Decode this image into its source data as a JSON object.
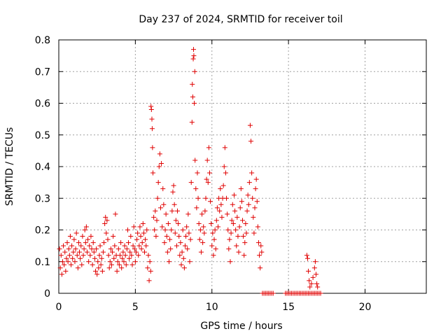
{
  "chart_data": {
    "type": "scatter",
    "title": "Day 237 of 2024, SRMTID for receiver toil",
    "xlabel": "GPS time / hours",
    "ylabel": "SRMTID / TECUs",
    "xlim": [
      0,
      24
    ],
    "ylim": [
      0,
      0.8
    ],
    "xticks": [
      0,
      5,
      10,
      15,
      20
    ],
    "yticks": [
      0,
      0.1,
      0.2,
      0.3,
      0.4,
      0.5,
      0.6,
      0.7,
      0.8
    ],
    "grid": true,
    "marker": "+",
    "series": [
      {
        "name": "SRMTID",
        "color": "#e00000",
        "points": [
          [
            0.05,
            0.14
          ],
          [
            0.1,
            0.08
          ],
          [
            0.15,
            0.12
          ],
          [
            0.2,
            0.06
          ],
          [
            0.25,
            0.1
          ],
          [
            0.3,
            0.15
          ],
          [
            0.35,
            0.09
          ],
          [
            0.4,
            0.13
          ],
          [
            0.45,
            0.07
          ],
          [
            0.5,
            0.11
          ],
          [
            0.55,
            0.16
          ],
          [
            0.6,
            0.1
          ],
          [
            0.65,
            0.14
          ],
          [
            0.7,
            0.12
          ],
          [
            0.75,
            0.18
          ],
          [
            0.8,
            0.09
          ],
          [
            0.85,
            0.15
          ],
          [
            0.9,
            0.11
          ],
          [
            0.95,
            0.13
          ],
          [
            1.0,
            0.17
          ],
          [
            1.05,
            0.1
          ],
          [
            1.1,
            0.14
          ],
          [
            1.15,
            0.19
          ],
          [
            1.2,
            0.12
          ],
          [
            1.25,
            0.08
          ],
          [
            1.3,
            0.16
          ],
          [
            1.35,
            0.13
          ],
          [
            1.4,
            0.11
          ],
          [
            1.45,
            0.15
          ],
          [
            1.5,
            0.09
          ],
          [
            1.55,
            0.18
          ],
          [
            1.6,
            0.12
          ],
          [
            1.65,
            0.14
          ],
          [
            1.7,
            0.2
          ],
          [
            1.75,
            0.16
          ],
          [
            1.8,
            0.21
          ],
          [
            1.85,
            0.13
          ],
          [
            1.9,
            0.17
          ],
          [
            1.95,
            0.1
          ],
          [
            2.0,
            0.15
          ],
          [
            2.05,
            0.12
          ],
          [
            2.1,
            0.18
          ],
          [
            2.15,
            0.14
          ],
          [
            2.2,
            0.09
          ],
          [
            2.25,
            0.16
          ],
          [
            2.3,
            0.13
          ],
          [
            2.35,
            0.11
          ],
          [
            2.4,
            0.07
          ],
          [
            2.45,
            0.14
          ],
          [
            2.5,
            0.06
          ],
          [
            2.55,
            0.1
          ],
          [
            2.6,
            0.08
          ],
          [
            2.65,
            0.12
          ],
          [
            2.7,
            0.15
          ],
          [
            2.75,
            0.09
          ],
          [
            2.8,
            0.11
          ],
          [
            2.85,
            0.07
          ],
          [
            2.9,
            0.13
          ],
          [
            2.95,
            0.16
          ],
          [
            3.0,
            0.22
          ],
          [
            3.05,
            0.24
          ],
          [
            3.1,
            0.19
          ],
          [
            3.15,
            0.23
          ],
          [
            3.2,
            0.17
          ],
          [
            3.25,
            0.12
          ],
          [
            3.3,
            0.08
          ],
          [
            3.35,
            0.1
          ],
          [
            3.4,
            0.14
          ],
          [
            3.45,
            0.09
          ],
          [
            3.5,
            0.13
          ],
          [
            3.55,
            0.18
          ],
          [
            3.6,
            0.11
          ],
          [
            3.65,
            0.15
          ],
          [
            3.7,
            0.25
          ],
          [
            3.75,
            0.12
          ],
          [
            3.8,
            0.07
          ],
          [
            3.85,
            0.1
          ],
          [
            3.9,
            0.14
          ],
          [
            3.95,
            0.09
          ],
          [
            4.0,
            0.12
          ],
          [
            4.05,
            0.16
          ],
          [
            4.1,
            0.08
          ],
          [
            4.15,
            0.11
          ],
          [
            4.2,
            0.13
          ],
          [
            4.25,
            0.1
          ],
          [
            4.3,
            0.15
          ],
          [
            4.35,
            0.12
          ],
          [
            4.4,
            0.09
          ],
          [
            4.45,
            0.14
          ],
          [
            4.5,
            0.2
          ],
          [
            4.55,
            0.16
          ],
          [
            4.6,
            0.11
          ],
          [
            4.65,
            0.13
          ],
          [
            4.7,
            0.18
          ],
          [
            4.75,
            0.12
          ],
          [
            4.8,
            0.09
          ],
          [
            4.85,
            0.15
          ],
          [
            4.9,
            0.21
          ],
          [
            4.95,
            0.14
          ],
          [
            5.0,
            0.1
          ],
          [
            5.05,
            0.13
          ],
          [
            5.1,
            0.17
          ],
          [
            5.15,
            0.19
          ],
          [
            5.2,
            0.12
          ],
          [
            5.25,
            0.15
          ],
          [
            5.3,
            0.21
          ],
          [
            5.35,
            0.18
          ],
          [
            5.4,
            0.14
          ],
          [
            5.45,
            0.16
          ],
          [
            5.5,
            0.22
          ],
          [
            5.55,
            0.19
          ],
          [
            5.6,
            0.13
          ],
          [
            5.65,
            0.17
          ],
          [
            5.7,
            0.15
          ],
          [
            5.75,
            0.2
          ],
          [
            5.8,
            0.08
          ],
          [
            5.85,
            0.12
          ],
          [
            5.9,
            0.04
          ],
          [
            5.95,
            0.1
          ],
          [
            6.0,
            0.07
          ],
          [
            6.02,
            0.59
          ],
          [
            6.05,
            0.58
          ],
          [
            6.08,
            0.55
          ],
          [
            6.1,
            0.52
          ],
          [
            6.12,
            0.46
          ],
          [
            6.15,
            0.38
          ],
          [
            6.2,
            0.24
          ],
          [
            6.25,
            0.2
          ],
          [
            6.3,
            0.26
          ],
          [
            6.35,
            0.18
          ],
          [
            6.4,
            0.23
          ],
          [
            6.45,
            0.3
          ],
          [
            6.5,
            0.35
          ],
          [
            6.55,
            0.4
          ],
          [
            6.6,
            0.44
          ],
          [
            6.65,
            0.27
          ],
          [
            6.7,
            0.41
          ],
          [
            6.75,
            0.21
          ],
          [
            6.8,
            0.33
          ],
          [
            6.85,
            0.28
          ],
          [
            6.9,
            0.16
          ],
          [
            6.95,
            0.2
          ],
          [
            7.0,
            0.25
          ],
          [
            7.05,
            0.18
          ],
          [
            7.1,
            0.13
          ],
          [
            7.15,
            0.22
          ],
          [
            7.2,
            0.1
          ],
          [
            7.25,
            0.17
          ],
          [
            7.3,
            0.14
          ],
          [
            7.35,
            0.2
          ],
          [
            7.4,
            0.26
          ],
          [
            7.45,
            0.32
          ],
          [
            7.5,
            0.34
          ],
          [
            7.55,
            0.28
          ],
          [
            7.6,
            0.19
          ],
          [
            7.65,
            0.23
          ],
          [
            7.7,
            0.15
          ],
          [
            7.75,
            0.26
          ],
          [
            7.8,
            0.22
          ],
          [
            7.85,
            0.18
          ],
          [
            7.9,
            0.12
          ],
          [
            7.95,
            0.16
          ],
          [
            8.0,
            0.09
          ],
          [
            8.05,
            0.13
          ],
          [
            8.1,
            0.2
          ],
          [
            8.15,
            0.11
          ],
          [
            8.2,
            0.08
          ],
          [
            8.25,
            0.15
          ],
          [
            8.3,
            0.18
          ],
          [
            8.35,
            0.21
          ],
          [
            8.4,
            0.14
          ],
          [
            8.45,
            0.25
          ],
          [
            8.5,
            0.19
          ],
          [
            8.55,
            0.1
          ],
          [
            8.6,
            0.17
          ],
          [
            8.65,
            0.35
          ],
          [
            8.7,
            0.54
          ],
          [
            8.72,
            0.66
          ],
          [
            8.75,
            0.62
          ],
          [
            8.78,
            0.74
          ],
          [
            8.8,
            0.77
          ],
          [
            8.82,
            0.75
          ],
          [
            8.85,
            0.6
          ],
          [
            8.88,
            0.7
          ],
          [
            8.9,
            0.42
          ],
          [
            8.95,
            0.33
          ],
          [
            9.0,
            0.27
          ],
          [
            9.05,
            0.38
          ],
          [
            9.1,
            0.3
          ],
          [
            9.15,
            0.22
          ],
          [
            9.2,
            0.17
          ],
          [
            9.25,
            0.2
          ],
          [
            9.3,
            0.13
          ],
          [
            9.35,
            0.25
          ],
          [
            9.4,
            0.16
          ],
          [
            9.45,
            0.21
          ],
          [
            9.5,
            0.19
          ],
          [
            9.55,
            0.26
          ],
          [
            9.6,
            0.3
          ],
          [
            9.65,
            0.36
          ],
          [
            9.7,
            0.42
          ],
          [
            9.75,
            0.35
          ],
          [
            9.8,
            0.46
          ],
          [
            9.85,
            0.38
          ],
          [
            9.9,
            0.29
          ],
          [
            9.95,
            0.22
          ],
          [
            10.0,
            0.15
          ],
          [
            10.05,
            0.19
          ],
          [
            10.1,
            0.12
          ],
          [
            10.15,
            0.17
          ],
          [
            10.2,
            0.2
          ],
          [
            10.25,
            0.14
          ],
          [
            10.3,
            0.23
          ],
          [
            10.35,
            0.27
          ],
          [
            10.4,
            0.21
          ],
          [
            10.45,
            0.3
          ],
          [
            10.5,
            0.26
          ],
          [
            10.55,
            0.33
          ],
          [
            10.6,
            0.28
          ],
          [
            10.65,
            0.24
          ],
          [
            10.7,
            0.3
          ],
          [
            10.75,
            0.34
          ],
          [
            10.8,
            0.4
          ],
          [
            10.85,
            0.46
          ],
          [
            10.9,
            0.38
          ],
          [
            10.95,
            0.3
          ],
          [
            11.0,
            0.25
          ],
          [
            11.05,
            0.2
          ],
          [
            11.1,
            0.14
          ],
          [
            11.15,
            0.17
          ],
          [
            11.2,
            0.1
          ],
          [
            11.25,
            0.19
          ],
          [
            11.3,
            0.23
          ],
          [
            11.35,
            0.28
          ],
          [
            11.4,
            0.22
          ],
          [
            11.45,
            0.31
          ],
          [
            11.5,
            0.26
          ],
          [
            11.55,
            0.2
          ],
          [
            11.6,
            0.15
          ],
          [
            11.65,
            0.24
          ],
          [
            11.7,
            0.18
          ],
          [
            11.75,
            0.13
          ],
          [
            11.8,
            0.21
          ],
          [
            11.85,
            0.27
          ],
          [
            11.9,
            0.33
          ],
          [
            11.95,
            0.29
          ],
          [
            12.0,
            0.23
          ],
          [
            12.05,
            0.18
          ],
          [
            12.1,
            0.12
          ],
          [
            12.15,
            0.16
          ],
          [
            12.2,
            0.22
          ],
          [
            12.25,
            0.19
          ],
          [
            12.3,
            0.26
          ],
          [
            12.35,
            0.31
          ],
          [
            12.4,
            0.28
          ],
          [
            12.45,
            0.35
          ],
          [
            12.5,
            0.53
          ],
          [
            12.55,
            0.48
          ],
          [
            12.6,
            0.38
          ],
          [
            12.65,
            0.3
          ],
          [
            12.7,
            0.24
          ],
          [
            12.75,
            0.19
          ],
          [
            12.8,
            0.27
          ],
          [
            12.85,
            0.33
          ],
          [
            12.9,
            0.36
          ],
          [
            12.95,
            0.29
          ],
          [
            13.0,
            0.21
          ],
          [
            13.05,
            0.16
          ],
          [
            13.1,
            0.12
          ],
          [
            13.15,
            0.08
          ],
          [
            13.2,
            0.15
          ],
          [
            13.25,
            0.13
          ],
          [
            13.3,
            0.0
          ],
          [
            13.4,
            0.0
          ],
          [
            13.5,
            0.0
          ],
          [
            13.6,
            0.0
          ],
          [
            13.7,
            0.0
          ],
          [
            13.8,
            0.0
          ],
          [
            13.9,
            0.0
          ],
          [
            14.0,
            0.0
          ],
          [
            14.8,
            0.0
          ],
          [
            14.9,
            0.0
          ],
          [
            15.0,
            0.0
          ],
          [
            15.1,
            0.0
          ],
          [
            15.2,
            0.0
          ],
          [
            15.3,
            0.0
          ],
          [
            15.4,
            0.0
          ],
          [
            15.5,
            0.0
          ],
          [
            15.6,
            0.0
          ],
          [
            15.7,
            0.0
          ],
          [
            15.8,
            0.0
          ],
          [
            15.9,
            0.0
          ],
          [
            16.0,
            0.0
          ],
          [
            16.1,
            0.0
          ],
          [
            16.2,
            0.0
          ],
          [
            16.3,
            0.0
          ],
          [
            16.4,
            0.0
          ],
          [
            16.5,
            0.0
          ],
          [
            16.6,
            0.0
          ],
          [
            16.7,
            0.0
          ],
          [
            16.8,
            0.0
          ],
          [
            16.9,
            0.0
          ],
          [
            17.0,
            0.0
          ],
          [
            17.1,
            0.0
          ],
          [
            16.2,
            0.12
          ],
          [
            16.25,
            0.11
          ],
          [
            16.3,
            0.07
          ],
          [
            16.35,
            0.04
          ],
          [
            16.4,
            0.02
          ],
          [
            16.5,
            0.03
          ],
          [
            16.6,
            0.05
          ],
          [
            16.7,
            0.08
          ],
          [
            16.75,
            0.1
          ],
          [
            16.8,
            0.06
          ],
          [
            16.85,
            0.03
          ],
          [
            16.9,
            0.02
          ]
        ]
      }
    ]
  }
}
